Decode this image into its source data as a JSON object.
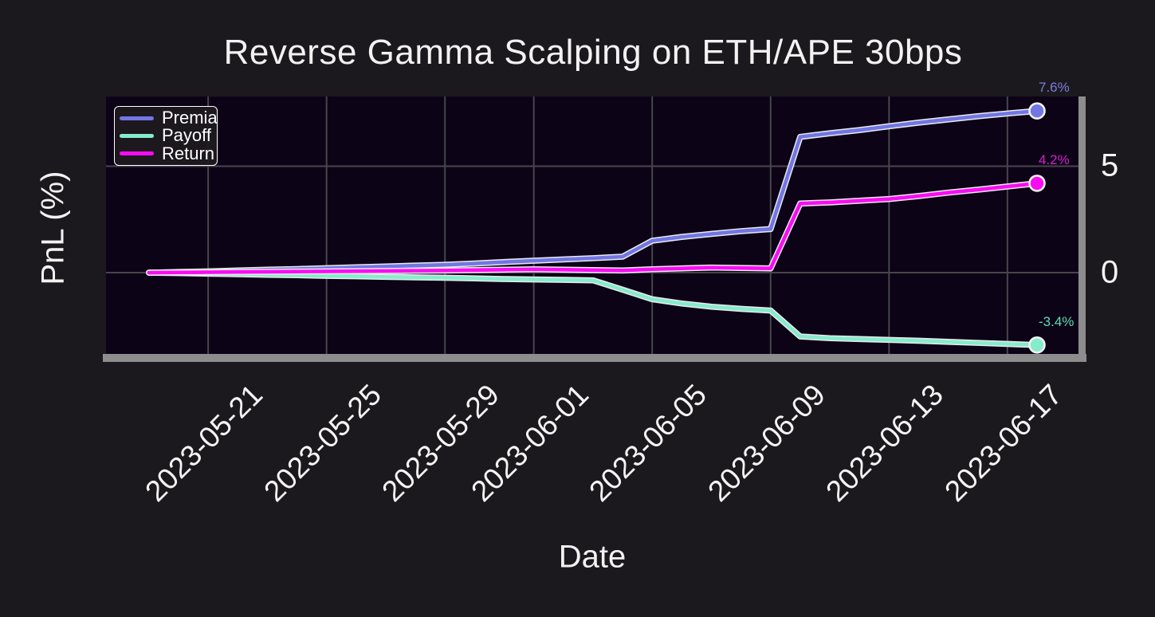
{
  "colors": {
    "figure_bg": "#1c191e",
    "plot_bg": "#0d0316",
    "grid": "#46464c",
    "spine": "#8d8d8d",
    "text": "#f2f2f2",
    "line_outline": "#e9e9ee",
    "marker_edge": "#f0f0f0"
  },
  "chart_data": {
    "type": "line",
    "title": "Reverse Gamma Scalping on ETH/APE 30bps",
    "xlabel": "Date",
    "ylabel": "PnL (%)",
    "grid": true,
    "legend_position": "upper left",
    "ylim": [
      -3.82,
      8.28
    ],
    "xlim_days_from_start": [
      -1.45,
      31.4
    ],
    "x": [
      "2023-05-19",
      "2023-05-20",
      "2023-05-21",
      "2023-05-22",
      "2023-05-23",
      "2023-05-24",
      "2023-05-25",
      "2023-05-26",
      "2023-05-27",
      "2023-05-28",
      "2023-05-29",
      "2023-05-30",
      "2023-05-31",
      "2023-06-01",
      "2023-06-02",
      "2023-06-03",
      "2023-06-04",
      "2023-06-05",
      "2023-06-06",
      "2023-06-07",
      "2023-06-08",
      "2023-06-09",
      "2023-06-10",
      "2023-06-11",
      "2023-06-12",
      "2023-06-13",
      "2023-06-14",
      "2023-06-15",
      "2023-06-16",
      "2023-06-17",
      "2023-06-18"
    ],
    "series": [
      {
        "name": "Premia",
        "color": "#7276e3",
        "end_label": "7.6%",
        "end_label_color": "#7a7de0",
        "values": [
          0.0,
          0.03,
          0.06,
          0.1,
          0.14,
          0.17,
          0.21,
          0.25,
          0.29,
          0.33,
          0.37,
          0.43,
          0.5,
          0.56,
          0.62,
          0.68,
          0.75,
          1.5,
          1.68,
          1.82,
          1.95,
          2.05,
          6.38,
          6.55,
          6.7,
          6.88,
          7.05,
          7.2,
          7.35,
          7.48,
          7.6
        ]
      },
      {
        "name": "Payoff",
        "color": "#85eccb",
        "end_label": "-3.4%",
        "end_label_color": "#5edcb4",
        "values": [
          0.0,
          -0.02,
          -0.05,
          -0.07,
          -0.1,
          -0.12,
          -0.15,
          -0.17,
          -0.2,
          -0.22,
          -0.24,
          -0.27,
          -0.3,
          -0.32,
          -0.34,
          -0.36,
          -0.8,
          -1.25,
          -1.45,
          -1.6,
          -1.7,
          -1.78,
          -3.0,
          -3.08,
          -3.12,
          -3.16,
          -3.2,
          -3.25,
          -3.3,
          -3.35,
          -3.4
        ]
      },
      {
        "name": "Return",
        "color": "#fa0cf3",
        "end_label": "4.2%",
        "end_label_color": "#d81ed1",
        "values": [
          0.0,
          0.01,
          0.02,
          0.03,
          0.04,
          0.05,
          0.06,
          0.07,
          0.08,
          0.09,
          0.1,
          0.12,
          0.14,
          0.16,
          0.14,
          0.12,
          0.1,
          0.16,
          0.2,
          0.24,
          0.22,
          0.2,
          3.25,
          3.3,
          3.38,
          3.46,
          3.6,
          3.76,
          3.9,
          4.05,
          4.2
        ]
      }
    ],
    "yticks": [
      {
        "value": 5,
        "label": "5"
      },
      {
        "value": 0,
        "label": "0"
      }
    ],
    "xticks": [
      {
        "date": "2023-05-21",
        "label": "2023-05-21"
      },
      {
        "date": "2023-05-25",
        "label": "2023-05-25"
      },
      {
        "date": "2023-05-29",
        "label": "2023-05-29"
      },
      {
        "date": "2023-06-01",
        "label": "2023-06-01"
      },
      {
        "date": "2023-06-05",
        "label": "2023-06-05"
      },
      {
        "date": "2023-06-09",
        "label": "2023-06-09"
      },
      {
        "date": "2023-06-13",
        "label": "2023-06-13"
      },
      {
        "date": "2023-06-17",
        "label": "2023-06-17"
      }
    ]
  }
}
